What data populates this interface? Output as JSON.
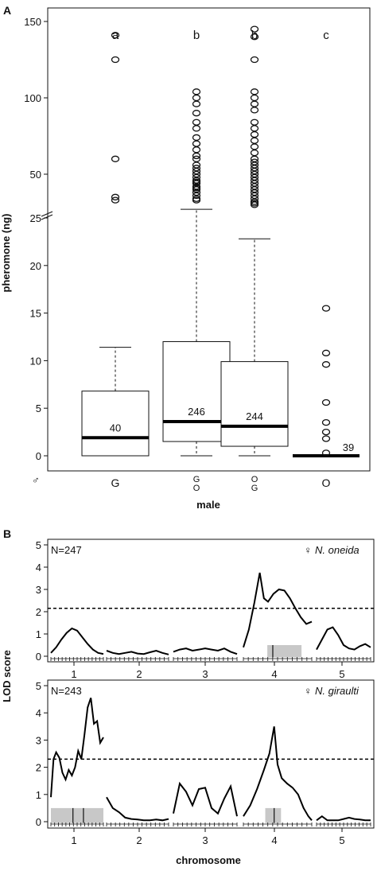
{
  "chart_data": [
    {
      "panel": "A",
      "type": "box",
      "ylabel": "pheromone (ng)",
      "xlabel": "male",
      "male_symbol": "♂",
      "lower_yticks": [
        0,
        5,
        10,
        15,
        20,
        25
      ],
      "upper_yticks": [
        50,
        100,
        150
      ],
      "groups": [
        {
          "genotype": "G",
          "letter": "a",
          "n": "40",
          "q1": 0,
          "median": 1.9,
          "q3": 6.8,
          "whisker_low": 0,
          "whisker_high": 11.4,
          "outliers": [
            33,
            35,
            60,
            125,
            141
          ]
        },
        {
          "genotype": "G/O",
          "letter": "b",
          "n": "246",
          "q1": 1.5,
          "median": 3.6,
          "q3": 12.0,
          "whisker_low": 0,
          "whisker_high": 27,
          "outliers": [
            33,
            34,
            36,
            38,
            40,
            41,
            42,
            44,
            45,
            46,
            48,
            50,
            52,
            54,
            56,
            60,
            62,
            66,
            70,
            74,
            80,
            84,
            90,
            96,
            100,
            104
          ]
        },
        {
          "genotype": "O/G",
          "letter": "b",
          "n": "244",
          "q1": 1.0,
          "median": 3.1,
          "q3": 9.9,
          "whisker_low": 0,
          "whisker_high": 22.8,
          "outliers": [
            30,
            31,
            32,
            34,
            36,
            38,
            40,
            42,
            44,
            46,
            48,
            50,
            52,
            54,
            56,
            58,
            60,
            64,
            68,
            72,
            76,
            80,
            84,
            92,
            96,
            100,
            104,
            125,
            140,
            145
          ]
        },
        {
          "genotype": "O",
          "letter": "c",
          "n": "39",
          "q1": 0,
          "median": 0,
          "q3": 0,
          "whisker_low": 0,
          "whisker_high": 0,
          "outliers": [
            0.3,
            1.8,
            2.5,
            3.5,
            5.6,
            9.6,
            10.8,
            15.5
          ]
        }
      ]
    },
    {
      "panel": "B",
      "type": "line",
      "ylabel": "LOD score",
      "xlabel": "chromosome",
      "chromosomes": [
        "1",
        "2",
        "3",
        "4",
        "5"
      ],
      "yticks": [
        0,
        1,
        2,
        3,
        4,
        5
      ],
      "subplots": [
        {
          "n_label": "N=247",
          "species": "N. oneida",
          "female_symbol": "♀",
          "threshold": 2.15,
          "series": [
            {
              "chromosome": "1",
              "x": [
                0,
                0.1,
                0.2,
                0.3,
                0.4,
                0.5,
                0.6,
                0.7,
                0.8,
                0.9,
                1.0
              ],
              "lod": [
                0.15,
                0.4,
                0.75,
                1.05,
                1.25,
                1.15,
                0.85,
                0.55,
                0.3,
                0.15,
                0.1
              ]
            },
            {
              "chromosome": "2",
              "x": [
                0,
                0.1,
                0.2,
                0.3,
                0.4,
                0.5,
                0.6,
                0.7,
                0.8,
                0.9,
                1.0
              ],
              "lod": [
                0.25,
                0.15,
                0.1,
                0.15,
                0.2,
                0.12,
                0.1,
                0.18,
                0.25,
                0.15,
                0.08
              ]
            },
            {
              "chromosome": "3",
              "x": [
                0,
                0.1,
                0.2,
                0.3,
                0.4,
                0.5,
                0.6,
                0.7,
                0.8,
                0.9,
                1.0
              ],
              "lod": [
                0.2,
                0.3,
                0.35,
                0.25,
                0.3,
                0.35,
                0.3,
                0.25,
                0.35,
                0.2,
                0.1
              ]
            },
            {
              "chromosome": "4",
              "x": [
                0,
                0.08,
                0.16,
                0.24,
                0.3,
                0.36,
                0.44,
                0.52,
                0.6,
                0.68,
                0.76,
                0.84,
                0.92,
                1.0
              ],
              "lod": [
                0.4,
                1.2,
                2.4,
                3.75,
                2.6,
                2.45,
                2.8,
                3.0,
                2.95,
                2.6,
                2.15,
                1.75,
                1.45,
                1.55
              ]
            },
            {
              "chromosome": "5",
              "x": [
                0,
                0.1,
                0.2,
                0.3,
                0.4,
                0.5,
                0.6,
                0.7,
                0.8,
                0.9,
                1.0
              ],
              "lod": [
                0.3,
                0.75,
                1.2,
                1.3,
                0.95,
                0.5,
                0.35,
                0.3,
                0.45,
                0.55,
                0.4
              ]
            }
          ],
          "ci_boxes": [
            {
              "chromosome": "4",
              "x_start": 0.35,
              "x_end": 0.85,
              "peak_x": 0.43
            }
          ]
        },
        {
          "n_label": "N=243",
          "species": "N. giraulti",
          "female_symbol": "♀",
          "threshold": 2.3,
          "series": [
            {
              "chromosome": "1",
              "x": [
                0,
                0.05,
                0.1,
                0.16,
                0.22,
                0.28,
                0.34,
                0.4,
                0.46,
                0.52,
                0.58,
                0.64,
                0.7,
                0.76,
                0.82,
                0.88,
                0.94,
                1.0
              ],
              "lod": [
                0.9,
                2.3,
                2.55,
                2.35,
                1.8,
                1.55,
                1.9,
                1.7,
                2.0,
                2.6,
                2.3,
                3.2,
                4.2,
                4.55,
                3.6,
                3.7,
                2.9,
                3.1
              ]
            },
            {
              "chromosome": "2",
              "x": [
                0,
                0.1,
                0.2,
                0.3,
                0.4,
                0.5,
                0.6,
                0.7,
                0.8,
                0.9,
                1.0
              ],
              "lod": [
                0.9,
                0.5,
                0.35,
                0.15,
                0.1,
                0.08,
                0.05,
                0.05,
                0.08,
                0.05,
                0.1
              ]
            },
            {
              "chromosome": "3",
              "x": [
                0,
                0.1,
                0.2,
                0.3,
                0.4,
                0.5,
                0.6,
                0.7,
                0.8,
                0.9,
                1.0
              ],
              "lod": [
                0.3,
                1.4,
                1.1,
                0.6,
                1.2,
                1.25,
                0.5,
                0.3,
                0.85,
                1.3,
                0.2
              ]
            },
            {
              "chromosome": "4",
              "x": [
                0,
                0.1,
                0.2,
                0.3,
                0.38,
                0.45,
                0.5,
                0.56,
                0.64,
                0.72,
                0.8,
                0.88,
                0.95,
                1.0
              ],
              "lod": [
                0.2,
                0.6,
                1.2,
                1.9,
                2.5,
                3.5,
                2.1,
                1.6,
                1.4,
                1.25,
                1.0,
                0.5,
                0.2,
                0.05
              ]
            },
            {
              "chromosome": "5",
              "x": [
                0,
                0.1,
                0.2,
                0.3,
                0.4,
                0.5,
                0.6,
                0.7,
                0.8,
                0.9,
                1.0
              ],
              "lod": [
                0.05,
                0.2,
                0.05,
                0.05,
                0.05,
                0.1,
                0.15,
                0.1,
                0.08,
                0.05,
                0.05
              ]
            }
          ],
          "ci_boxes": [
            {
              "chromosome": "1",
              "x_start": 0.0,
              "x_end": 1.0,
              "peak_x": 0.42,
              "peak2_x": 0.62
            },
            {
              "chromosome": "4",
              "x_start": 0.32,
              "x_end": 0.55,
              "peak_x": 0.45
            }
          ]
        }
      ]
    }
  ],
  "labels": {
    "panel_a": "A",
    "panel_b": "B"
  }
}
